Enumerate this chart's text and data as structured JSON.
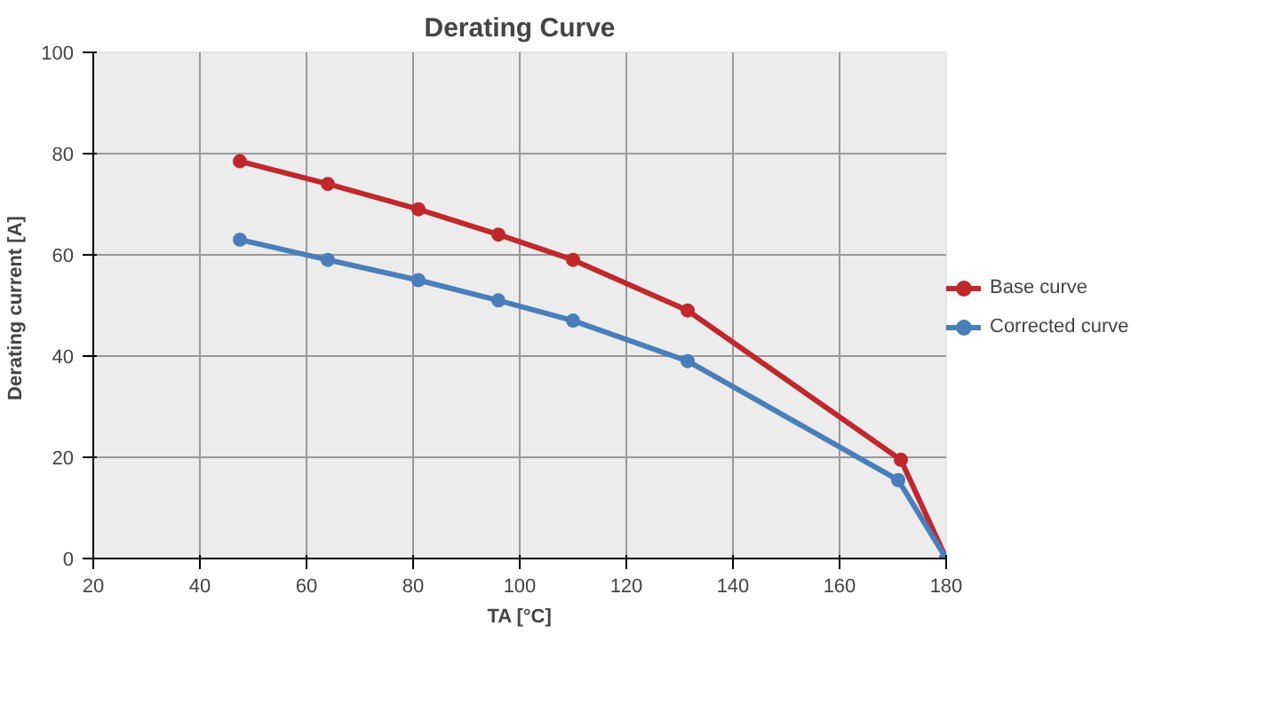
{
  "chart_data": {
    "type": "line",
    "title": "Derating Curve",
    "xlabel": "TA [°C]",
    "ylabel": "Derating current  [A]",
    "xlim": [
      20,
      180
    ],
    "xticks": [
      20,
      40,
      60,
      80,
      100,
      120,
      140,
      160,
      180
    ],
    "ylim": [
      0,
      100
    ],
    "yticks": [
      0,
      20,
      40,
      60,
      80,
      100
    ],
    "grid": true,
    "legend": "right",
    "marker": "circle",
    "line_style": "solid",
    "series": [
      {
        "name": "Base curve",
        "color": "#c0282d",
        "x": [
          47.5,
          64,
          81,
          96,
          110,
          131.5,
          171.5,
          180
        ],
        "values": [
          78.5,
          74,
          69,
          64,
          59,
          49,
          19.5,
          0
        ]
      },
      {
        "name": "Corrected curve",
        "color": "#4a7ebb",
        "x": [
          47.5,
          64,
          81,
          96,
          110,
          131.5,
          171,
          180
        ],
        "values": [
          63,
          59,
          55,
          51,
          47,
          39,
          15.5,
          0
        ]
      }
    ]
  }
}
